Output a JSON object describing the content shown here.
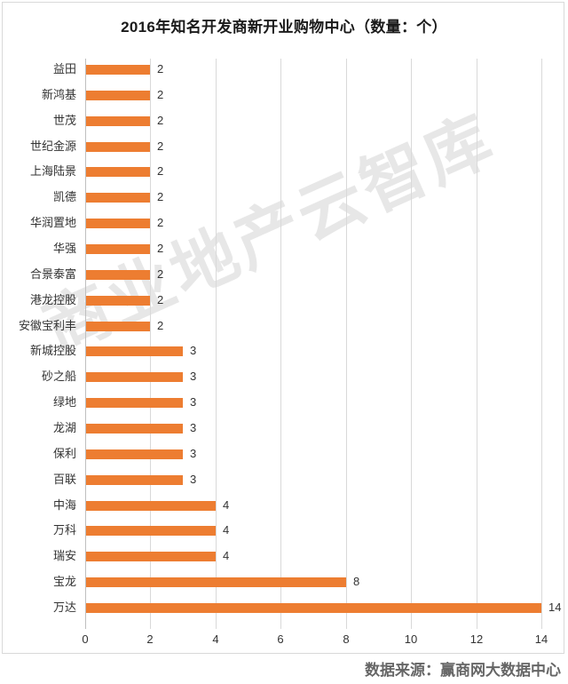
{
  "chart_data": {
    "type": "bar",
    "orientation": "horizontal",
    "title": "2016年知名开发商新开业购物中心（数量：个）",
    "xlabel": "",
    "ylabel": "",
    "xlim": [
      0,
      14
    ],
    "x_ticks": [
      "0",
      "2",
      "4",
      "6",
      "8",
      "10",
      "12",
      "14"
    ],
    "grid": true,
    "legend": null,
    "bar_color": "#ed7d31",
    "categories": [
      "益田",
      "新鸿基",
      "世茂",
      "世纪金源",
      "上海陆景",
      "凯德",
      "华润置地",
      "华强",
      "合景泰富",
      "港龙控股",
      "安徽宝利丰",
      "新城控股",
      "砂之船",
      "绿地",
      "龙湖",
      "保利",
      "百联",
      "中海",
      "万科",
      "瑞安",
      "宝龙",
      "万达"
    ],
    "values": [
      2,
      2,
      2,
      2,
      2,
      2,
      2,
      2,
      2,
      2,
      2,
      3,
      3,
      3,
      3,
      3,
      3,
      4,
      4,
      4,
      8,
      14
    ],
    "data_labels": [
      "2",
      "2",
      "2",
      "2",
      "2",
      "2",
      "2",
      "2",
      "2",
      "2",
      "2",
      "3",
      "3",
      "3",
      "3",
      "3",
      "3",
      "4",
      "4",
      "4",
      "8",
      "14"
    ]
  },
  "watermark": "商业地产云智库",
  "source": "数据来源：赢商网大数据中心"
}
